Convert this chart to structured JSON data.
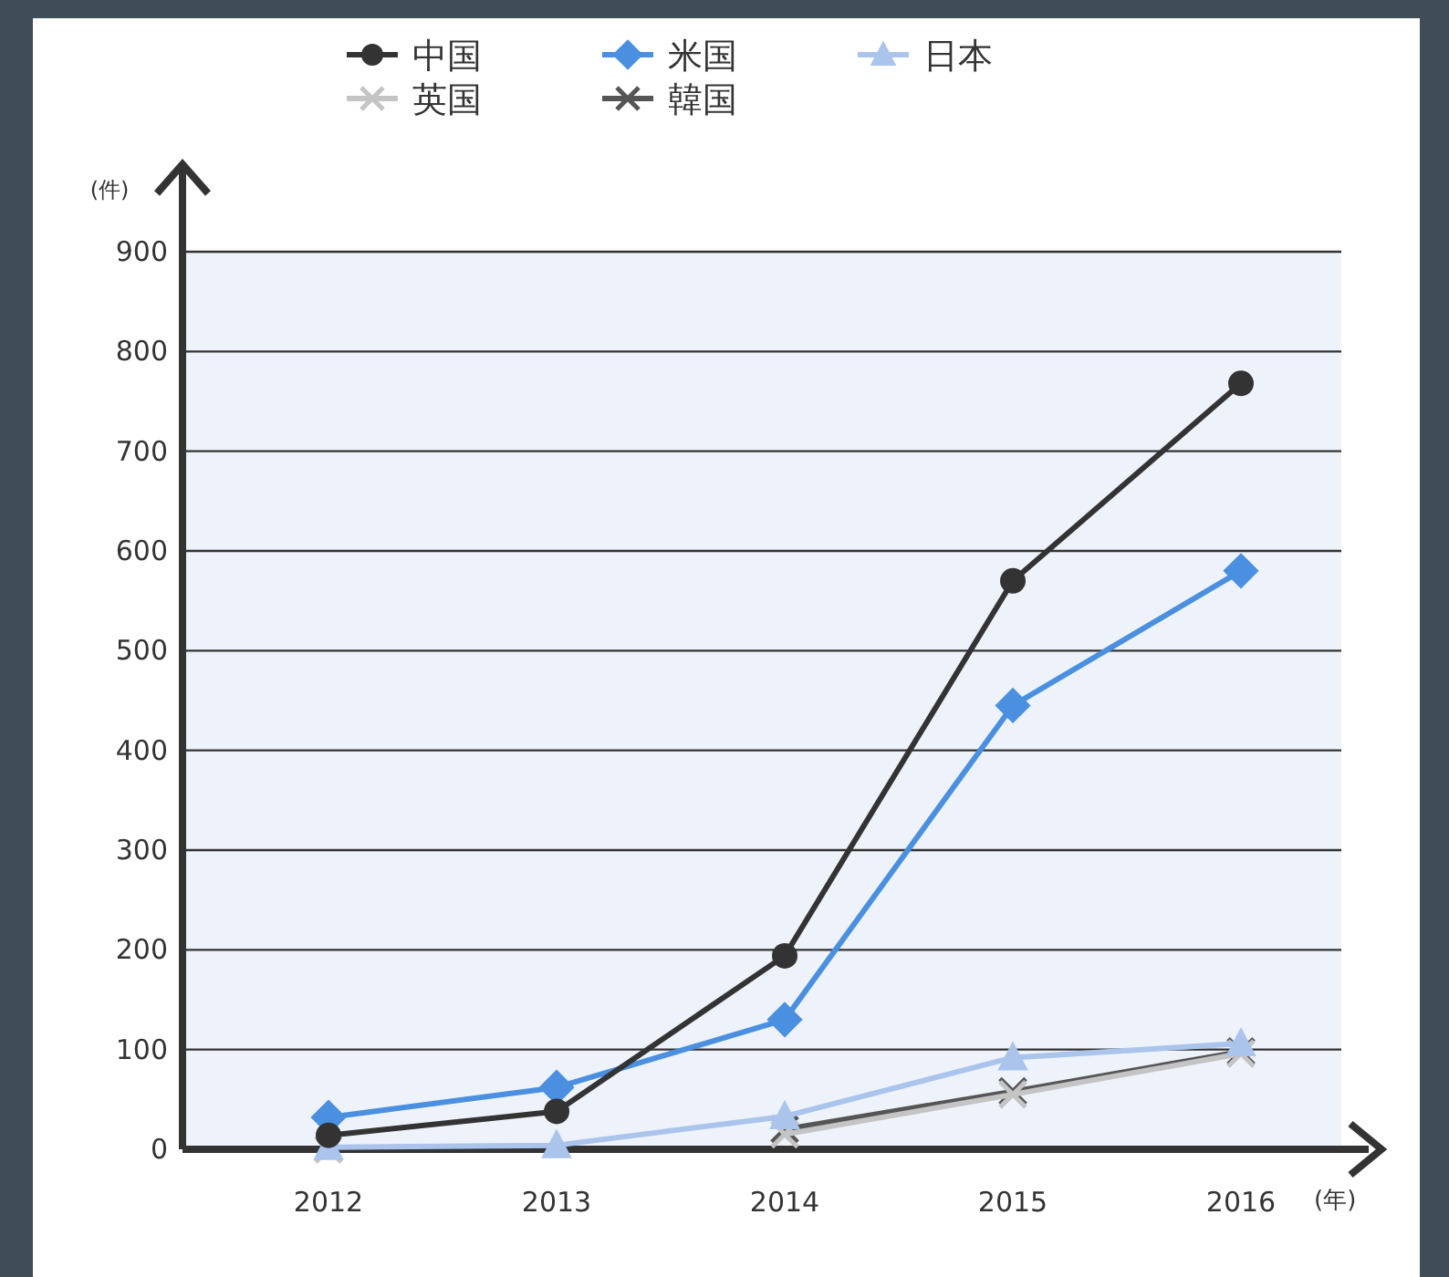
{
  "chart_data": {
    "type": "line",
    "categories": [
      "2012",
      "2013",
      "2014",
      "2015",
      "2016"
    ],
    "ylabel": "(件)",
    "xlabel": "(年)",
    "ylim": [
      0,
      900
    ],
    "yticks": [
      0,
      100,
      200,
      300,
      400,
      500,
      600,
      700,
      800,
      900
    ],
    "grid": "y",
    "legend": "top",
    "series": [
      {
        "name": "中国",
        "color": "#333333",
        "marker": "circle",
        "values": [
          14,
          38,
          194,
          570,
          768
        ]
      },
      {
        "name": "米国",
        "color": "#4a8fe0",
        "marker": "diamond",
        "values": [
          32,
          62,
          130,
          445,
          580
        ]
      },
      {
        "name": "日本",
        "color": "#aac4ec",
        "marker": "triangle",
        "values": [
          2,
          4,
          33,
          92,
          106
        ]
      },
      {
        "name": "英国",
        "color": "#c4c4c4",
        "marker": "cross",
        "values": [
          0,
          null,
          15,
          55,
          96
        ]
      },
      {
        "name": "韓国",
        "color": "#555555",
        "marker": "cross",
        "values": [
          null,
          null,
          20,
          58,
          98
        ]
      }
    ]
  }
}
